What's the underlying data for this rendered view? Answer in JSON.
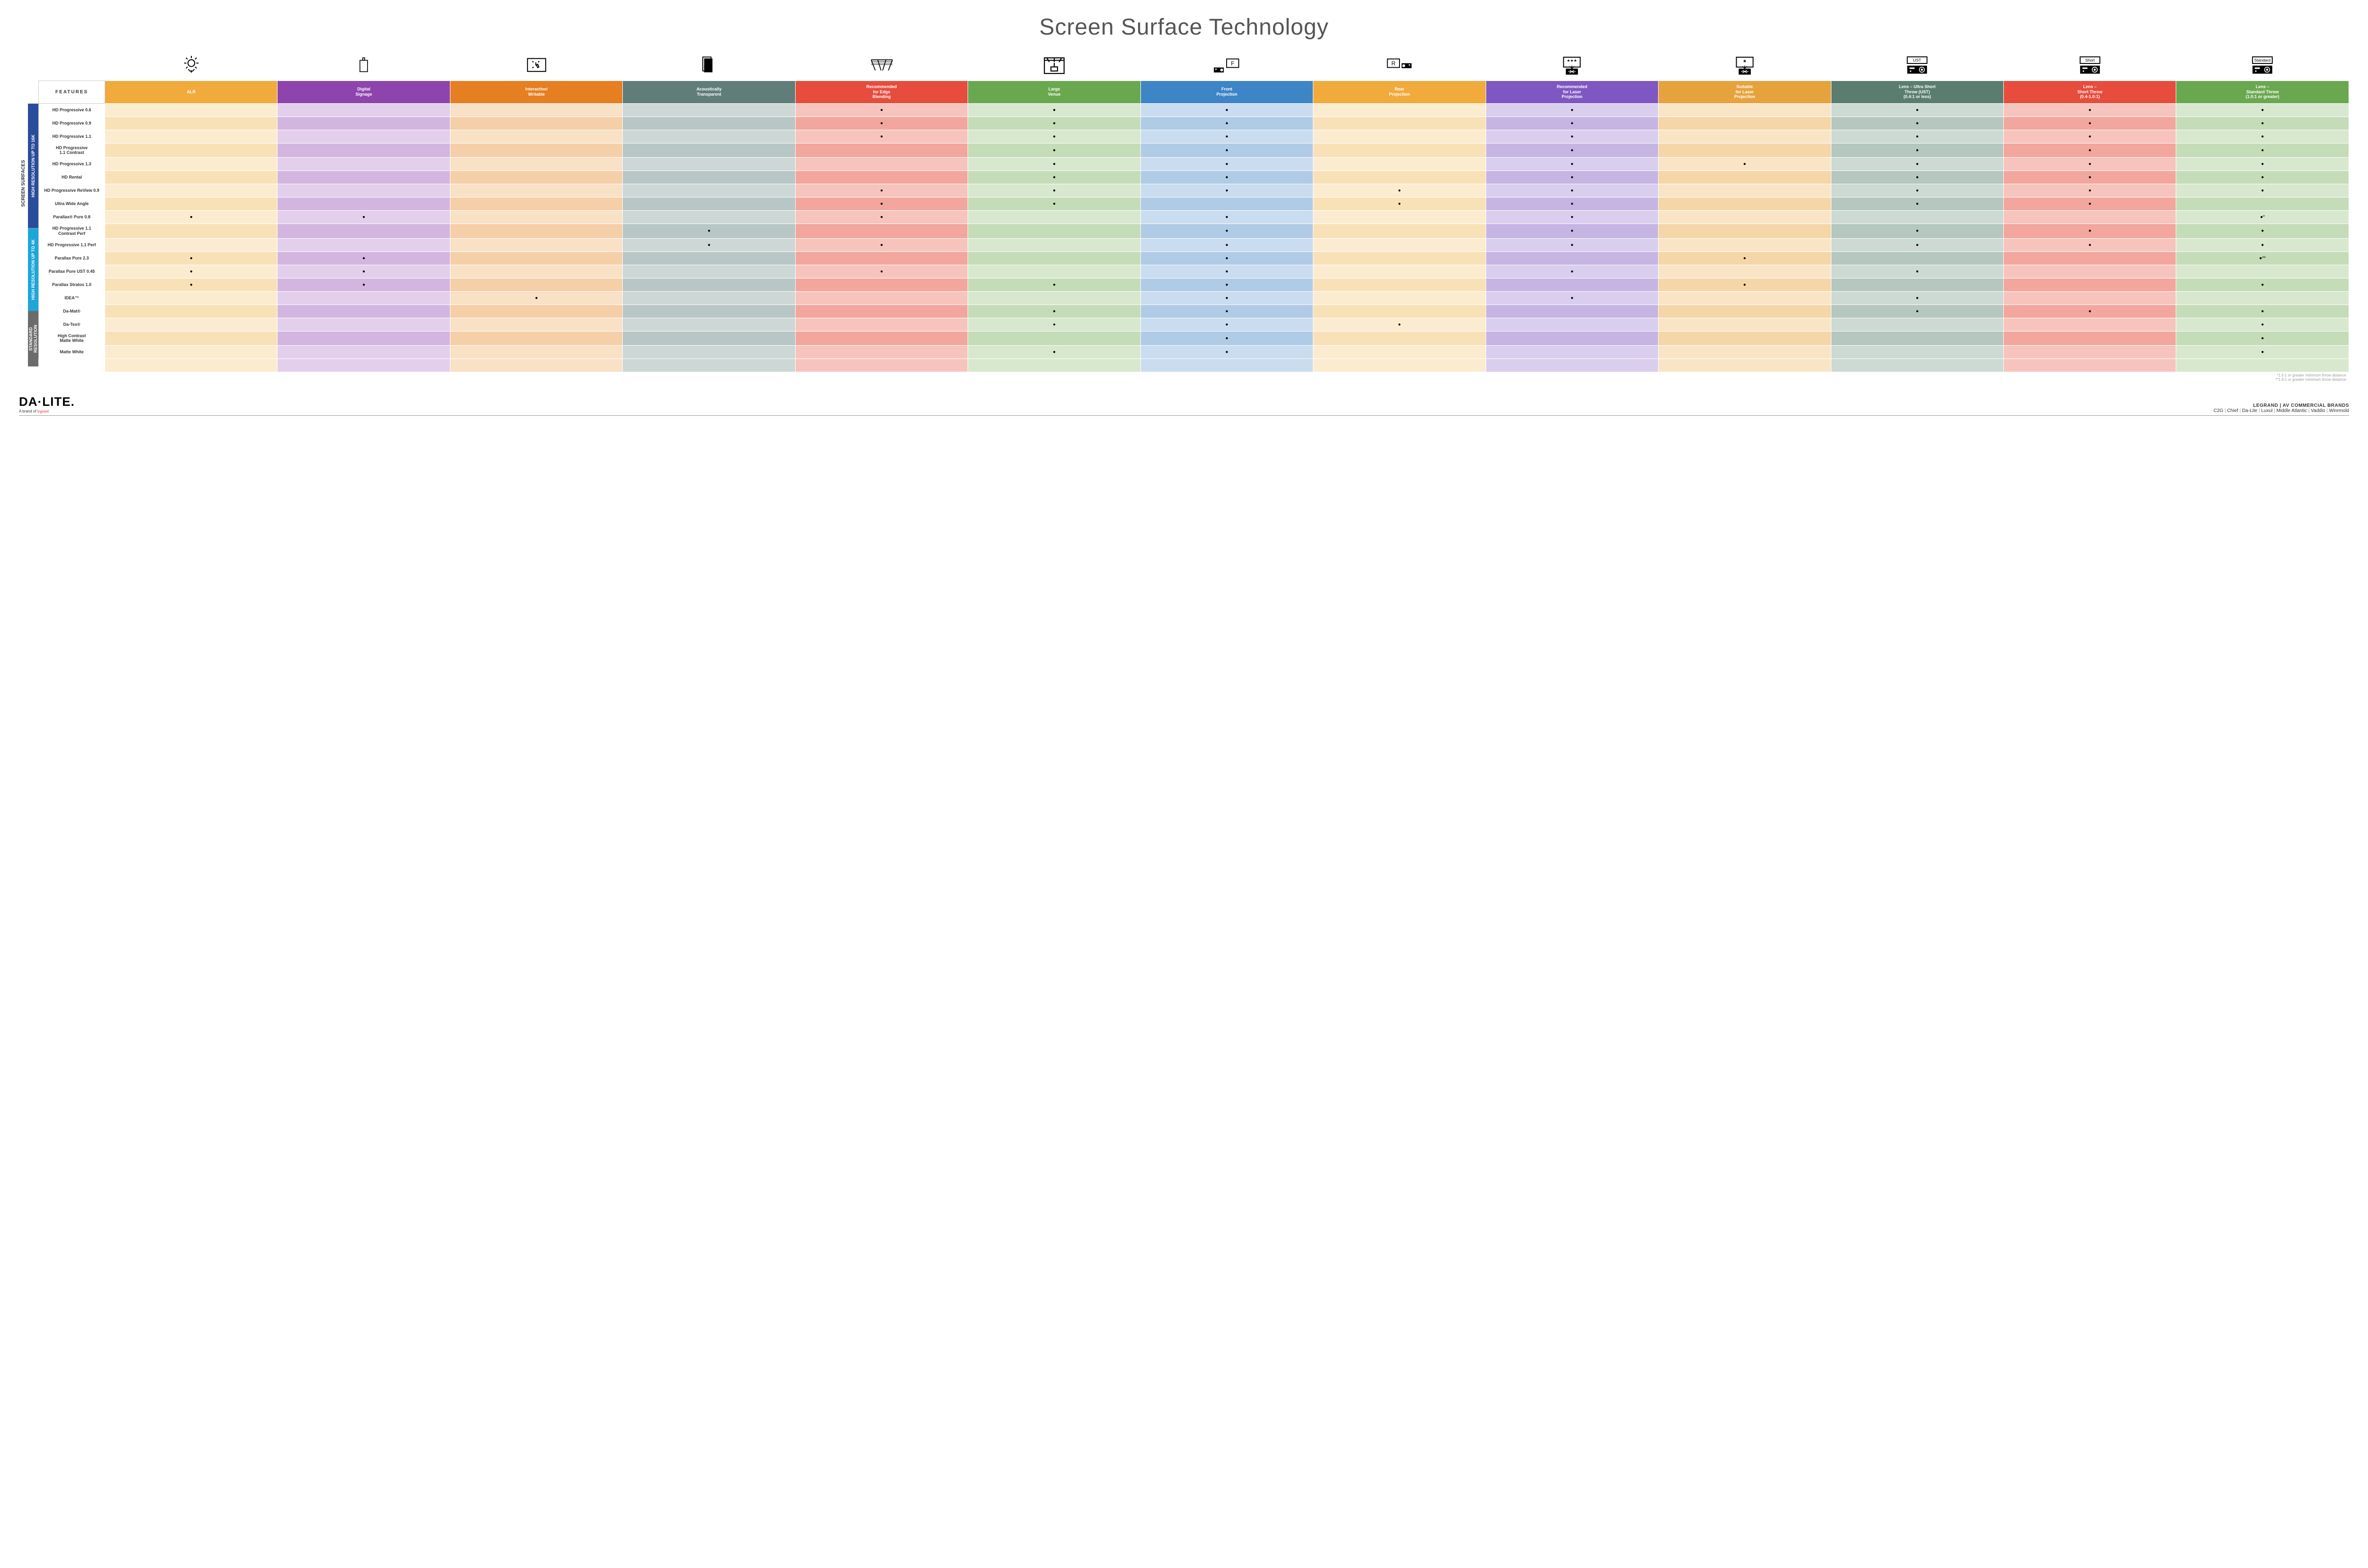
{
  "title": "Screen Surface Technology",
  "columns": [
    {
      "key": "alr",
      "label": "ALR",
      "color": "#f0ab3c",
      "tint": "#f9e1b7",
      "tintAlt": "#fceccf"
    },
    {
      "key": "signage",
      "label": "Digital\nSignage",
      "color": "#8e44ad",
      "tint": "#d3b6e0",
      "tintAlt": "#e3cfec"
    },
    {
      "key": "interactive",
      "label": "Interactive/\nWritable",
      "color": "#e67e22",
      "tint": "#f5cfa8",
      "tintAlt": "#f9e1c6"
    },
    {
      "key": "acoustic",
      "label": "Acoustically\nTransparent",
      "color": "#607d7a",
      "tint": "#b8c7c5",
      "tintAlt": "#cdd8d6"
    },
    {
      "key": "edge",
      "label": "Recommended\nfor Edge\nBlending",
      "color": "#e74c3c",
      "tint": "#f2a69d",
      "tintAlt": "#f7c4bd"
    },
    {
      "key": "venue",
      "label": "Large\nVenue",
      "color": "#6aa84f",
      "tint": "#c5dcb8",
      "tintAlt": "#d8e8cf"
    },
    {
      "key": "front",
      "label": "Front\nProjection",
      "color": "#3d85c6",
      "tint": "#b0cbe6",
      "tintAlt": "#cadcef"
    },
    {
      "key": "rear",
      "label": "Rear\nProjection",
      "color": "#f0ab3c",
      "tint": "#f9e1b7",
      "tintAlt": "#fceccf"
    },
    {
      "key": "reclaser",
      "label": "Recommended\nfor Laser\nProjection",
      "color": "#7e57c2",
      "tint": "#c6b5e3",
      "tintAlt": "#d9ceed"
    },
    {
      "key": "suitlaser",
      "label": "Suitable\nfor Laser\nProjection",
      "color": "#e6a23c",
      "tint": "#f5d6a8",
      "tintAlt": "#f9e5c6"
    },
    {
      "key": "ust",
      "label": "Lens – Ultra Short\nThrow (UST)\n(0.4:1 or less)",
      "color": "#5a7d6f",
      "tint": "#b5c7bf",
      "tintAlt": "#cdd9d3"
    },
    {
      "key": "short",
      "label": "Lens –\nShort Throw\n(0.4-1.0:1)",
      "color": "#e74c3c",
      "tint": "#f2a69d",
      "tintAlt": "#f7c4bd"
    },
    {
      "key": "std",
      "label": "Lens –\nStandard Throw\n(1.0:1 or greater)",
      "color": "#6aa84f",
      "tint": "#c5dcb8",
      "tintAlt": "#d8e8cf"
    }
  ],
  "featuresHeader": "FEATURES",
  "outerLabel": "SCREEN SURFACES",
  "groups": [
    {
      "label": "HIGH RESOLUTION UP TO 16K",
      "color": "#2a4d9b",
      "rows": [
        {
          "label": "HD Progressive 0.6",
          "cells": {
            "edge": "●",
            "venue": "●",
            "front": "●",
            "reclaser": "●",
            "ust": "●",
            "short": "●",
            "std": "●"
          }
        },
        {
          "label": "HD Progressive 0.9",
          "cells": {
            "edge": "●",
            "venue": "●",
            "front": "●",
            "reclaser": "●",
            "ust": "●",
            "short": "●",
            "std": "●"
          }
        },
        {
          "label": "HD Progressive 1.1",
          "cells": {
            "edge": "●",
            "venue": "●",
            "front": "●",
            "reclaser": "●",
            "ust": "●",
            "short": "●",
            "std": "●"
          }
        },
        {
          "label": "HD Progressive\n1.1 Contrast",
          "cells": {
            "venue": "●",
            "front": "●",
            "reclaser": "●",
            "ust": "●",
            "short": "●",
            "std": "●"
          }
        },
        {
          "label": "HD Progressive 1.3",
          "cells": {
            "venue": "●",
            "front": "●",
            "reclaser": "●",
            "suitlaser": "●",
            "ust": "●",
            "short": "●",
            "std": "●"
          }
        },
        {
          "label": "HD Rental",
          "cells": {
            "venue": "●",
            "front": "●",
            "reclaser": "●",
            "ust": "●",
            "short": "●",
            "std": "●"
          }
        },
        {
          "label": "HD Progressive ReView 0.9",
          "cells": {
            "edge": "●",
            "venue": "●",
            "front": "●",
            "rear": "●",
            "reclaser": "●",
            "ust": "●",
            "short": "●",
            "std": "●"
          }
        },
        {
          "label": "Ultra Wide Angle",
          "cells": {
            "edge": "●",
            "venue": "●",
            "rear": "●",
            "reclaser": "●",
            "ust": "●",
            "short": "●"
          }
        },
        {
          "label": "Parallax® Pure 0.8",
          "cells": {
            "alr": "●",
            "signage": "●",
            "edge": "●",
            "front": "●",
            "reclaser": "●",
            "std": "●*"
          }
        }
      ]
    },
    {
      "label": "HIGH RESOLUTION UP TO 4K",
      "color": "#1fa6d8",
      "rows": [
        {
          "label": "HD Progressive 1.1\nContrast Perf",
          "cells": {
            "acoustic": "●",
            "front": "●",
            "reclaser": "●",
            "ust": "●",
            "short": "●",
            "std": "●"
          }
        },
        {
          "label": "HD Progressive 1.1 Perf",
          "cells": {
            "acoustic": "●",
            "edge": "●",
            "front": "●",
            "reclaser": "●",
            "ust": "●",
            "short": "●",
            "std": "●"
          }
        },
        {
          "label": "Parallax Pure 2.3",
          "cells": {
            "alr": "●",
            "signage": "●",
            "front": "●",
            "suitlaser": "●",
            "std": "●**"
          }
        },
        {
          "label": "Parallax Pure UST 0.45",
          "cells": {
            "alr": "●",
            "signage": "●",
            "edge": "●",
            "front": "●",
            "reclaser": "●",
            "ust": "●"
          }
        },
        {
          "label": "Parallax Stratos 1.0",
          "cells": {
            "alr": "●",
            "signage": "●",
            "venue": "●",
            "front": "●",
            "suitlaser": "●",
            "std": "●"
          }
        },
        {
          "label": "IDEA™",
          "cells": {
            "interactive": "●",
            "front": "●",
            "reclaser": "●",
            "ust": "●"
          }
        }
      ]
    },
    {
      "label": "STANDARD\nRESOLUTION",
      "color": "#6b6b6b",
      "rows": [
        {
          "label": "Da-Mat®",
          "cells": {
            "venue": "●",
            "front": "●",
            "ust": "●",
            "short": "●",
            "std": "●"
          }
        },
        {
          "label": "Da-Tex®",
          "cells": {
            "venue": "●",
            "front": "●",
            "rear": "●",
            "std": "●"
          }
        },
        {
          "label": "High Contrast\nMatte White",
          "cells": {
            "front": "●",
            "std": "●"
          }
        },
        {
          "label": "Matte White",
          "cells": {
            "venue": "●",
            "front": "●",
            "std": "●"
          }
        }
      ]
    }
  ],
  "footnotes": [
    "*1.5:1 or greater minimum throw distance",
    "**1.8:1 or greater minimum throw distance"
  ],
  "logo": {
    "main": "DA·LITE.",
    "sub_before": "A brand of ",
    "sub_brand": "legrand"
  },
  "brands": {
    "title": "LEGRAND | AV COMMERCIAL BRANDS",
    "list": [
      "C2G",
      "Chief",
      "Da-Lite",
      "Luxul",
      "Middle Atlantic",
      "Vaddio",
      "Wiremold"
    ]
  },
  "iconLabels": {
    "ust": "UST",
    "short": "Short",
    "std": "Standard",
    "front": "F",
    "rear": "R"
  }
}
